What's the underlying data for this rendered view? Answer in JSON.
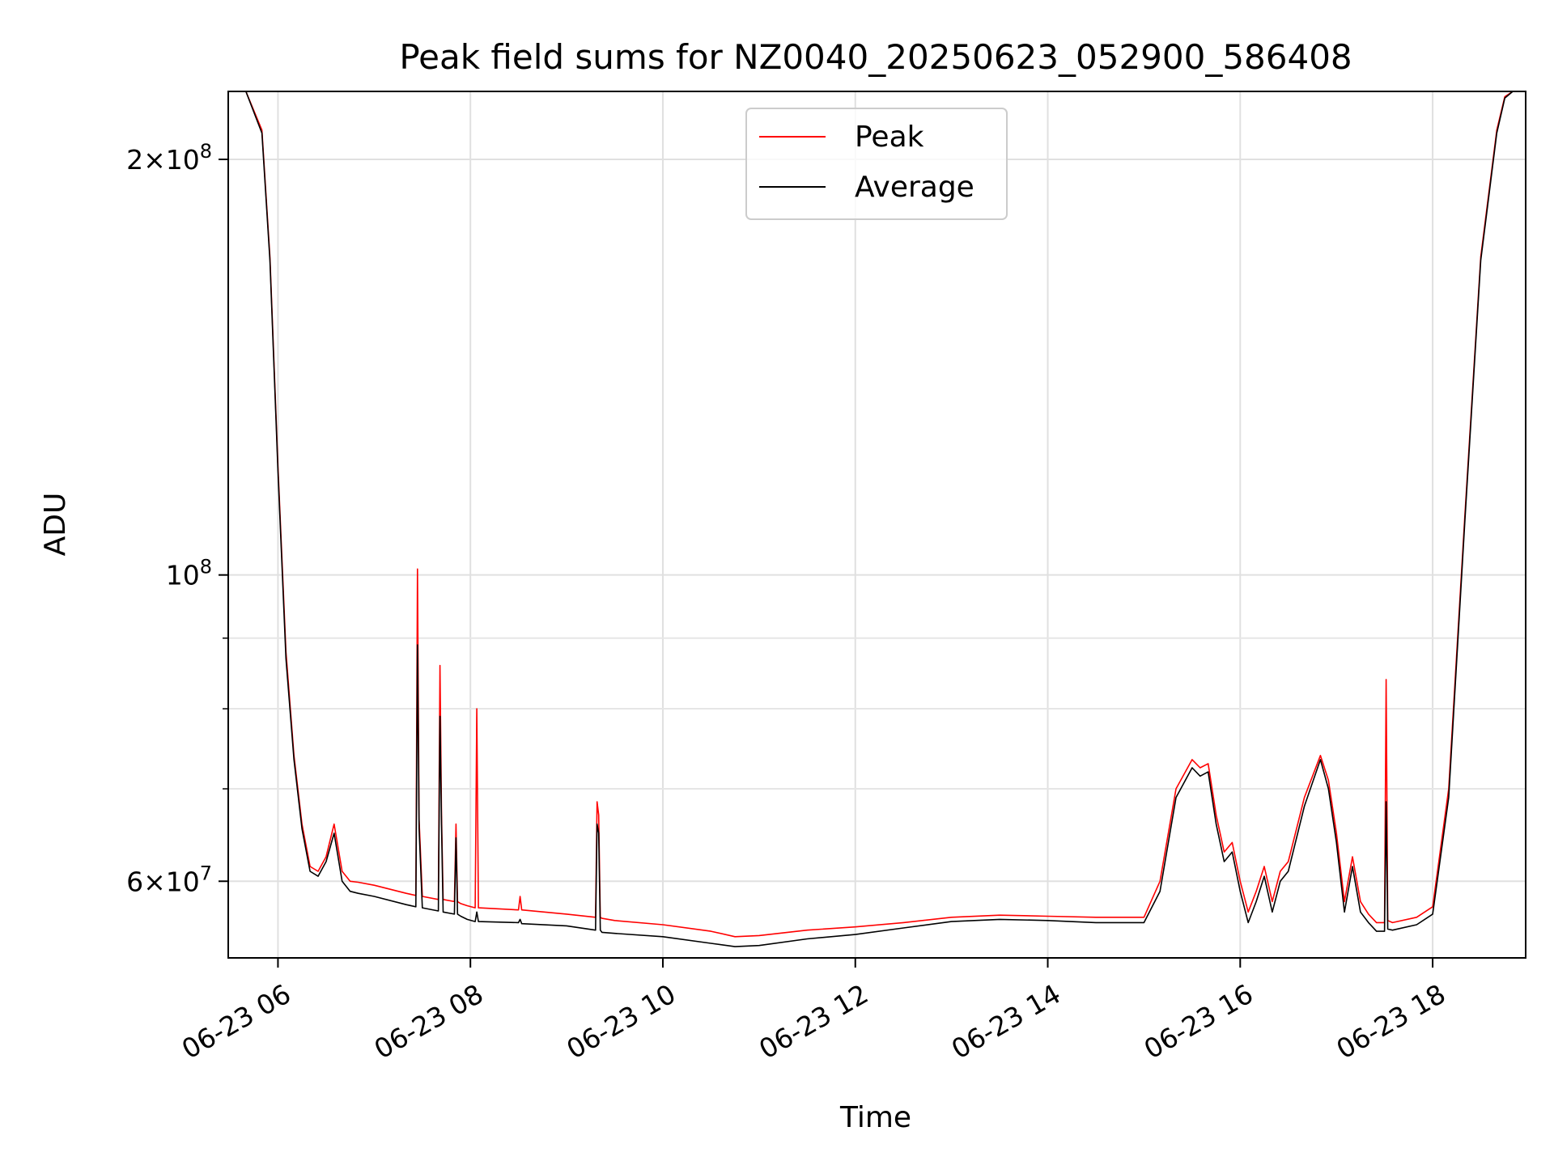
{
  "chart_data": {
    "type": "line",
    "title": "Peak field sums for NZ0040_20250623_052900_586408",
    "xlabel": "Time",
    "ylabel": "ADU",
    "y_scale": "log",
    "grid": true,
    "legend_position": "top-center",
    "xlim": [
      "2025-06-23 05:29",
      "2025-06-23 18:58"
    ],
    "ylim": [
      52800000,
      224000000
    ],
    "x_ticks": [
      "06-23 06",
      "06-23 08",
      "06-23 10",
      "06-23 12",
      "06-23 14",
      "06-23 16",
      "06-23 18"
    ],
    "x_tick_times": [
      "2025-06-23 06:00",
      "2025-06-23 08:00",
      "2025-06-23 10:00",
      "2025-06-23 12:00",
      "2025-06-23 14:00",
      "2025-06-23 16:00",
      "2025-06-23 18:00"
    ],
    "y_major_ticks": [
      {
        "value": 60000000,
        "mantissa": "6",
        "base": "10",
        "exp": "7"
      },
      {
        "value": 100000000,
        "mantissa": "",
        "base": "10",
        "exp": "8"
      },
      {
        "value": 200000000,
        "mantissa": "2",
        "base": "10",
        "exp": "8"
      }
    ],
    "y_minor_ticks": [
      70000000,
      80000000,
      90000000
    ],
    "series": [
      {
        "name": "Peak",
        "color": "#ff0000",
        "x": [
          "05:29",
          "05:40",
          "05:50",
          "05:55",
          "06:00",
          "06:05",
          "06:10",
          "06:15",
          "06:20",
          "06:25",
          "06:30",
          "06:35",
          "06:40",
          "06:45",
          "06:50",
          "07:00",
          "07:20",
          "07:26",
          "07:27",
          "07:28",
          "07:30",
          "07:40",
          "07:41",
          "07:42",
          "07:43",
          "07:50",
          "07:51",
          "07:52",
          "07:54",
          "07:58",
          "08:03",
          "08:04",
          "08:05",
          "08:30",
          "08:31",
          "08:32",
          "09:00",
          "09:18",
          "09:19",
          "09:20",
          "09:21",
          "09:22",
          "09:30",
          "10:00",
          "10:30",
          "10:45",
          "11:00",
          "11:30",
          "12:00",
          "12:30",
          "13:00",
          "13:30",
          "14:00",
          "14:30",
          "15:00",
          "15:10",
          "15:20",
          "15:30",
          "15:35",
          "15:40",
          "15:45",
          "15:50",
          "15:55",
          "16:00",
          "16:05",
          "16:10",
          "16:15",
          "16:20",
          "16:25",
          "16:30",
          "16:40",
          "16:50",
          "16:55",
          "17:00",
          "17:05",
          "17:10",
          "17:15",
          "17:20",
          "17:25",
          "17:30",
          "17:31",
          "17:32",
          "17:35",
          "17:50",
          "18:00",
          "18:10",
          "18:20",
          "18:30",
          "18:40",
          "18:45",
          "18:50",
          "18:58"
        ],
        "y": [
          225000000,
          225000000,
          210000000,
          170000000,
          120000000,
          88000000,
          74000000,
          66000000,
          61500000,
          61000000,
          62500000,
          66000000,
          61000000,
          60000000,
          59900000,
          59600000,
          58800000,
          58600000,
          101000000,
          66500000,
          58500000,
          58200000,
          86000000,
          67000000,
          58200000,
          58000000,
          66000000,
          58000000,
          57800000,
          57600000,
          57400000,
          80000000,
          57400000,
          57200000,
          58500000,
          57200000,
          56800000,
          56500000,
          68500000,
          67000000,
          56500000,
          56400000,
          56200000,
          55800000,
          55200000,
          54700000,
          54800000,
          55300000,
          55600000,
          56000000,
          56500000,
          56700000,
          56600000,
          56500000,
          56500000,
          60000000,
          70000000,
          73500000,
          72500000,
          73000000,
          67000000,
          63000000,
          64000000,
          60000000,
          57000000,
          59000000,
          61500000,
          58000000,
          61000000,
          62000000,
          69000000,
          74000000,
          71000000,
          65000000,
          58000000,
          62500000,
          58000000,
          56800000,
          56000000,
          56000000,
          84000000,
          56200000,
          56000000,
          56500000,
          57500000,
          70000000,
          110000000,
          170000000,
          210000000,
          222000000,
          225000000,
          225000000
        ]
      },
      {
        "name": "Average",
        "color": "#000000",
        "x": [
          "05:29",
          "05:40",
          "05:50",
          "05:55",
          "06:00",
          "06:05",
          "06:10",
          "06:15",
          "06:20",
          "06:25",
          "06:30",
          "06:35",
          "06:40",
          "06:45",
          "06:50",
          "07:00",
          "07:20",
          "07:26",
          "07:27",
          "07:28",
          "07:30",
          "07:40",
          "07:41",
          "07:42",
          "07:43",
          "07:50",
          "07:51",
          "07:52",
          "07:54",
          "07:58",
          "08:03",
          "08:04",
          "08:05",
          "08:30",
          "08:31",
          "08:32",
          "09:00",
          "09:18",
          "09:19",
          "09:20",
          "09:21",
          "09:22",
          "09:30",
          "10:00",
          "10:30",
          "10:45",
          "11:00",
          "11:30",
          "12:00",
          "12:30",
          "13:00",
          "13:30",
          "14:00",
          "14:30",
          "15:00",
          "15:10",
          "15:20",
          "15:30",
          "15:35",
          "15:40",
          "15:45",
          "15:50",
          "15:55",
          "16:00",
          "16:05",
          "16:10",
          "16:15",
          "16:20",
          "16:25",
          "16:30",
          "16:40",
          "16:50",
          "16:55",
          "17:00",
          "17:05",
          "17:10",
          "17:15",
          "17:20",
          "17:25",
          "17:30",
          "17:31",
          "17:32",
          "17:35",
          "17:50",
          "18:00",
          "18:10",
          "18:20",
          "18:30",
          "18:40",
          "18:45",
          "18:50",
          "18:58"
        ],
        "y": [
          225000000,
          225000000,
          209000000,
          169000000,
          119000000,
          87000000,
          73500000,
          65500000,
          61000000,
          60500000,
          62000000,
          65000000,
          60000000,
          59000000,
          58800000,
          58500000,
          57700000,
          57500000,
          89000000,
          65500000,
          57400000,
          57100000,
          79000000,
          66000000,
          57000000,
          56800000,
          64500000,
          56800000,
          56600000,
          56300000,
          56100000,
          57000000,
          56100000,
          56000000,
          56300000,
          55900000,
          55700000,
          55300000,
          66000000,
          65000000,
          55300000,
          55100000,
          55000000,
          54700000,
          54100000,
          53800000,
          53900000,
          54500000,
          54900000,
          55500000,
          56100000,
          56300000,
          56200000,
          56000000,
          56000000,
          59000000,
          69000000,
          72500000,
          71500000,
          72000000,
          66000000,
          62000000,
          63000000,
          59000000,
          56000000,
          58000000,
          60500000,
          57000000,
          60000000,
          61000000,
          68000000,
          73500000,
          70000000,
          64000000,
          57000000,
          61500000,
          57000000,
          56000000,
          55200000,
          55200000,
          68500000,
          55400000,
          55300000,
          55800000,
          56800000,
          69000000,
          109000000,
          169000000,
          209000000,
          221500000,
          225000000,
          225000000
        ]
      }
    ]
  }
}
